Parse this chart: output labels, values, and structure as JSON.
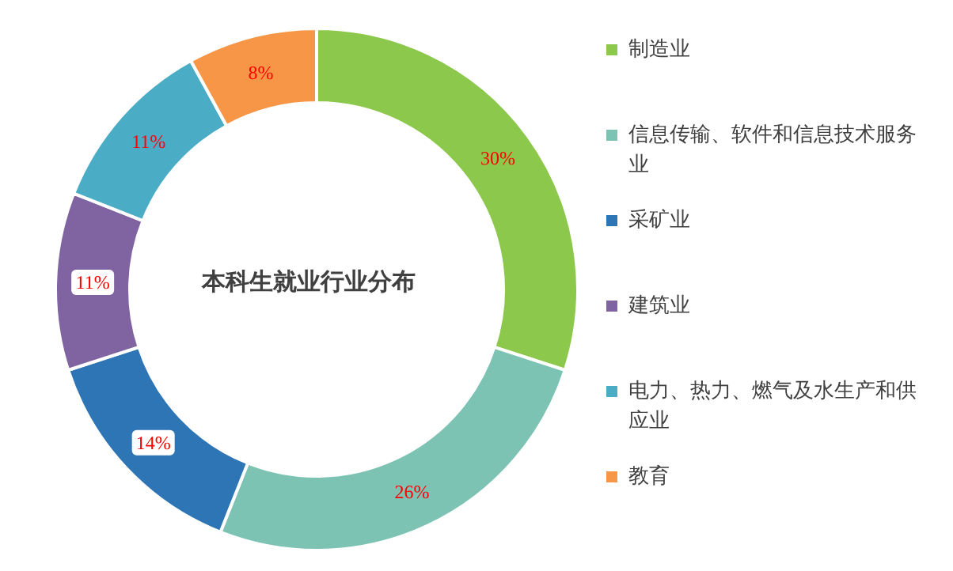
{
  "chart_data": {
    "type": "donut",
    "title": "本科生就业行业分布",
    "categories": [
      "制造业",
      "信息传输、软件和信息技术服务业",
      "采矿业",
      "建筑业",
      "电力、热力、燃气及水生产和供应业",
      "教育"
    ],
    "values": [
      30,
      26,
      14,
      11,
      11,
      8
    ],
    "value_labels": [
      "30%",
      "26%",
      "14%",
      "11%",
      "11%",
      "8%"
    ],
    "colors": [
      "#8cc84b",
      "#7dc3b4",
      "#2e75b6",
      "#8064a2",
      "#4bacc6",
      "#f79646"
    ],
    "legend": "right"
  }
}
